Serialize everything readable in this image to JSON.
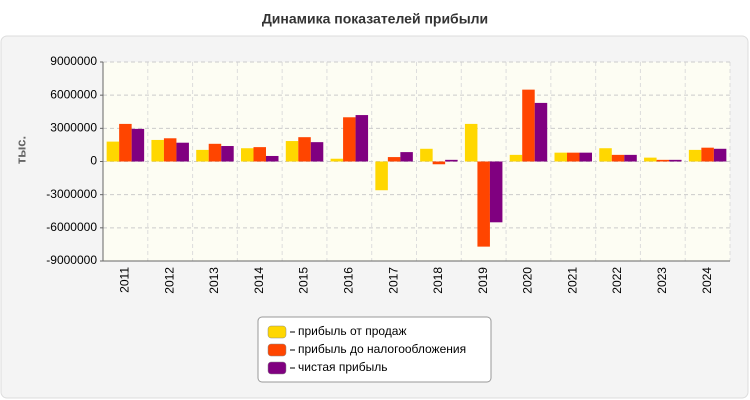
{
  "chart_data": {
    "type": "bar",
    "title": "Динамика показателей прибыли",
    "y_label": "тыс.",
    "categories": [
      "2011",
      "2012",
      "2013",
      "2014",
      "2015",
      "2016",
      "2017",
      "2018",
      "2019",
      "2020",
      "2021",
      "2022",
      "2023",
      "2024"
    ],
    "series": [
      {
        "name": "прибыль от продаж",
        "color": "#ffd700",
        "values": [
          1800000,
          1950000,
          1050000,
          1200000,
          1850000,
          250000,
          -2600000,
          1150000,
          3400000,
          600000,
          800000,
          1200000,
          350000,
          1050000
        ]
      },
      {
        "name": "прибыль до налогообложения",
        "color": "#ff4500",
        "values": [
          3400000,
          2100000,
          1600000,
          1300000,
          2200000,
          4000000,
          400000,
          -250000,
          -7700000,
          6500000,
          800000,
          600000,
          150000,
          1250000
        ]
      },
      {
        "name": "чистая прибыль",
        "color": "#800080",
        "values": [
          2950000,
          1700000,
          1400000,
          500000,
          1750000,
          4200000,
          850000,
          150000,
          -5500000,
          5300000,
          800000,
          600000,
          150000,
          1150000
        ]
      }
    ],
    "ylim": [
      -9000000,
      9000000
    ],
    "yticks": [
      -9000000,
      -6000000,
      -3000000,
      0,
      3000000,
      6000000,
      9000000
    ],
    "grid": true
  }
}
